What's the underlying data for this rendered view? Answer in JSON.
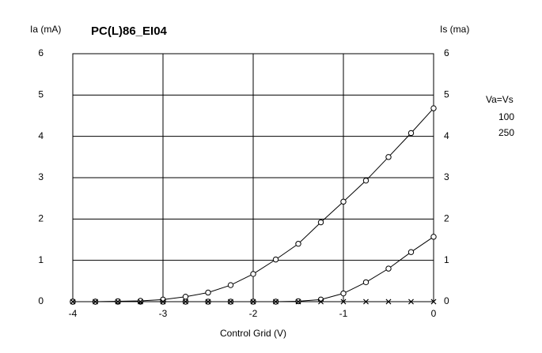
{
  "chart_data": {
    "type": "line",
    "title": "PC(L)86_EI04",
    "ylabel": "Ia (mA)",
    "y2label": "Is (ma)",
    "xlabel": "Control Grid (V)",
    "legend_title": "Va=Vs",
    "legend": "right",
    "grid": true,
    "x": [
      -4,
      -3.75,
      -3.5,
      -3.25,
      -3,
      -2.75,
      -2.5,
      -2.25,
      -2,
      -1.75,
      -1.5,
      -1.25,
      -1,
      -0.75,
      -0.5,
      -0.25,
      0
    ],
    "xlim": [
      -4,
      0
    ],
    "xticks": [
      -4,
      -3,
      -2,
      -1,
      0
    ],
    "ylim": [
      0,
      6
    ],
    "yticks": [
      0,
      1,
      2,
      3,
      4,
      5,
      6
    ],
    "y2lim": [
      0,
      6
    ],
    "y2ticks": [
      0,
      1,
      2,
      3,
      4,
      5,
      6
    ],
    "series": [
      {
        "name": "100",
        "color": "#000000",
        "marker": "circle",
        "values": [
          0,
          0,
          0,
          0,
          0,
          0,
          0,
          0,
          0,
          0,
          0.01,
          0.05,
          0.2,
          0.47,
          0.8,
          1.2,
          1.57
        ]
      },
      {
        "name": "250",
        "color": "#000000",
        "marker": "circle",
        "values": [
          0,
          0,
          0.01,
          0.02,
          0.05,
          0.12,
          0.22,
          0.4,
          0.67,
          1.02,
          1.4,
          1.92,
          2.42,
          2.93,
          3.5,
          4.08,
          4.68
        ]
      },
      {
        "name": "100",
        "color": "#000000",
        "marker": "x",
        "axis": "y2",
        "values": [
          0,
          0,
          0,
          0,
          0,
          0,
          0,
          0,
          0,
          0,
          0,
          0,
          0,
          0,
          0,
          0,
          0
        ]
      },
      {
        "name": "250",
        "color": "#000000",
        "marker": "x",
        "axis": "y2",
        "values": [
          0,
          0,
          0,
          0,
          0,
          0,
          0,
          0,
          0,
          0,
          0,
          0,
          0,
          0,
          0,
          0,
          0
        ]
      }
    ]
  }
}
